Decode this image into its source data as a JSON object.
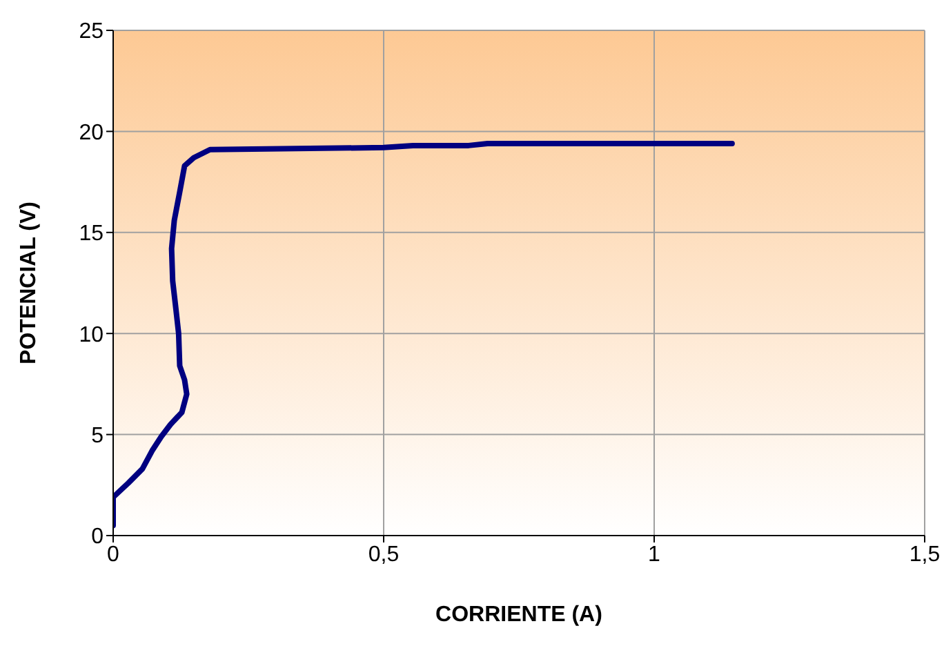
{
  "chart_data": {
    "type": "line",
    "xlabel": "CORRIENTE (A)",
    "ylabel": "POTENCIAL (V)",
    "x": [
      0,
      0,
      0.028,
      0.054,
      0.072,
      0.089,
      0.106,
      0.127,
      0.136,
      0.132,
      0.123,
      0.121,
      0.116,
      0.11,
      0.108,
      0.113,
      0.123,
      0.132,
      0.149,
      0.179,
      0.5,
      0.554,
      0.657,
      0.692,
      1.144
    ],
    "series": [
      {
        "color": "#000080",
        "values": [
          0.5,
          1.9,
          2.6,
          3.3,
          4.2,
          4.9,
          5.5,
          6.1,
          7,
          7.7,
          8.4,
          10,
          11.2,
          12.6,
          14.2,
          15.6,
          17,
          18.3,
          18.7,
          19.1,
          19.2,
          19.3,
          19.3,
          19.4,
          19.4
        ]
      }
    ],
    "xlim": [
      0,
      1.5
    ],
    "xticks": [
      0,
      {
        "value": 0.5,
        "label": "0,5"
      },
      1,
      {
        "value": 1.5,
        "label": "1,5"
      }
    ],
    "ylim": [
      0,
      25
    ],
    "yticks": [
      0,
      5,
      10,
      15,
      20,
      25
    ],
    "grid": true,
    "legend": false,
    "marker": "none",
    "line_style": "solid"
  }
}
